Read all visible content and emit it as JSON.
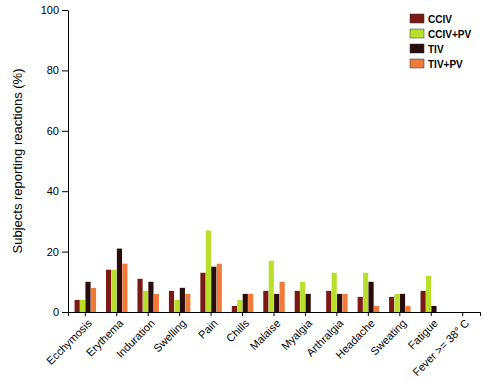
{
  "chart_data": {
    "type": "bar",
    "y_label": "Subjects reporting reactions (%)",
    "categories": [
      "Ecchymosis",
      "Erythema",
      "Induration",
      "Swelling",
      "Pain",
      "Chills",
      "Malaise",
      "Myalgia",
      "Arthralgia",
      "Headache",
      "Sweating",
      "Fatigue",
      "Fever >= 38° C"
    ],
    "series": [
      {
        "name": "CCIV",
        "color": "#7b1a14",
        "values": [
          4,
          14,
          11,
          7,
          13,
          2,
          7,
          7,
          7,
          5,
          5,
          7,
          0
        ]
      },
      {
        "name": "CCIV+PV",
        "color": "#b8e02a",
        "values": [
          4,
          14,
          7,
          4,
          27,
          4,
          17,
          10,
          13,
          13,
          6,
          12,
          0
        ]
      },
      {
        "name": "TIV",
        "color": "#2a0d0b",
        "values": [
          10,
          21,
          10,
          8,
          15,
          6,
          6,
          6,
          6,
          10,
          6,
          2,
          0
        ]
      },
      {
        "name": "TIV+PV",
        "color": "#f07a3a",
        "values": [
          8,
          16,
          6,
          6,
          16,
          6,
          10,
          0,
          6,
          2,
          2,
          0,
          0
        ]
      }
    ],
    "ylim": [
      0,
      100
    ],
    "yticks": [
      0,
      20,
      40,
      60,
      80,
      100
    ],
    "legend": "top-right",
    "grid": false
  }
}
